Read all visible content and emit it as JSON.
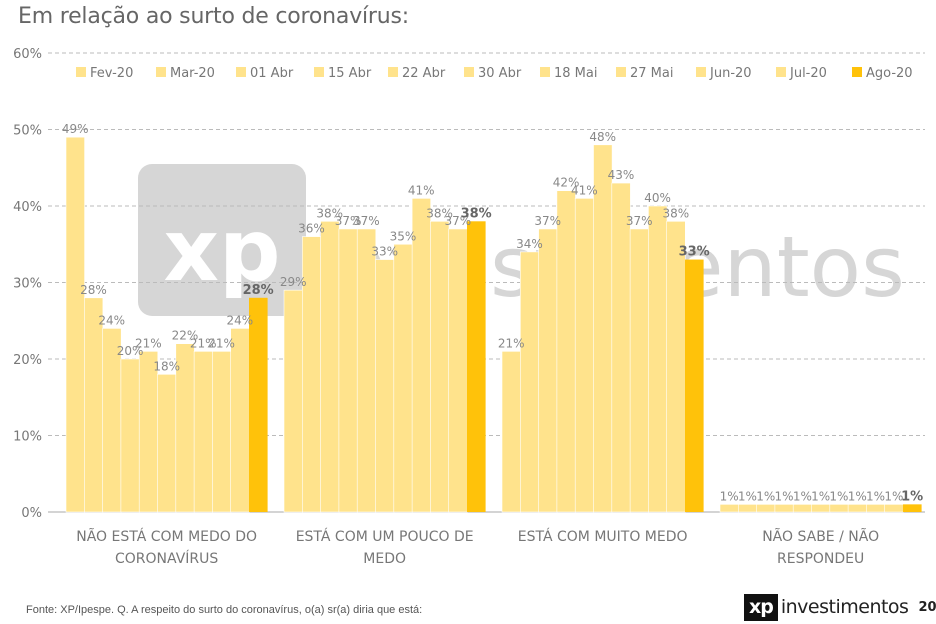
{
  "title": "Em relação ao surto de coronavírus:",
  "footer": {
    "source": "Fonte: XP/Ipespe. Q. A respeito do surto do coronavírus, o(a) sr(a) diria que está:",
    "brand_mark": "xp",
    "brand_word": "investimentos",
    "page_number": "20"
  },
  "watermark": {
    "mark": "xp",
    "word": "investimentos"
  },
  "colors": {
    "bar_light": "#FFE38C",
    "bar_highlight": "#FFC20A",
    "grid": "#BBBBBB",
    "axis": "#AAAAAA"
  },
  "chart_data": {
    "type": "bar",
    "title": "Em relação ao surto de coronavírus:",
    "ylim": [
      0,
      60
    ],
    "yticks": [
      "0%",
      "10%",
      "20%",
      "30%",
      "40%",
      "50%",
      "60%"
    ],
    "grid": true,
    "legend_position": "top",
    "categories": [
      [
        "NÃO ESTÁ COM MEDO DO",
        "CORONAVÍRUS"
      ],
      [
        "ESTÁ COM UM POUCO DE",
        "MEDO"
      ],
      [
        "ESTÁ COM MUITO MEDO"
      ],
      [
        "NÃO SABE / NÃO",
        "RESPONDEU"
      ]
    ],
    "highlight_series": "Ago-20",
    "series": [
      {
        "name": "Fev-20",
        "values": [
          49,
          29,
          21,
          1
        ]
      },
      {
        "name": "Mar-20",
        "values": [
          28,
          36,
          34,
          1
        ]
      },
      {
        "name": "01 Abr",
        "values": [
          24,
          38,
          37,
          1
        ]
      },
      {
        "name": "15 Abr",
        "values": [
          20,
          37,
          42,
          1
        ]
      },
      {
        "name": "22 Abr",
        "values": [
          21,
          37,
          41,
          1
        ]
      },
      {
        "name": "30 Abr",
        "values": [
          18,
          33,
          48,
          1
        ]
      },
      {
        "name": "18 Mai",
        "values": [
          22,
          35,
          43,
          1
        ]
      },
      {
        "name": "27 Mai",
        "values": [
          21,
          41,
          37,
          1
        ]
      },
      {
        "name": "Jun-20",
        "values": [
          21,
          38,
          40,
          1
        ]
      },
      {
        "name": "Jul-20",
        "values": [
          24,
          37,
          38,
          1
        ]
      },
      {
        "name": "Ago-20",
        "values": [
          28,
          38,
          33,
          1
        ]
      }
    ],
    "value_labels": [
      [
        "49%",
        "28%",
        "24%",
        "20%",
        "21%",
        "18%",
        "22%",
        "21%",
        "21%",
        "24%",
        "28%"
      ],
      [
        "29%",
        "36%",
        "38%",
        "37%",
        "37%",
        "33%",
        "35%",
        "41%",
        "38%",
        "37%",
        "38%"
      ],
      [
        "21%",
        "34%",
        "37%",
        "42%",
        "41%",
        "48%",
        "43%",
        "37%",
        "40%",
        "38%",
        "33%"
      ],
      [
        "1%",
        "1%",
        "1%",
        "1%",
        "1%",
        "1%",
        "1%",
        "1%",
        "1%",
        "1%",
        "1%"
      ]
    ]
  }
}
